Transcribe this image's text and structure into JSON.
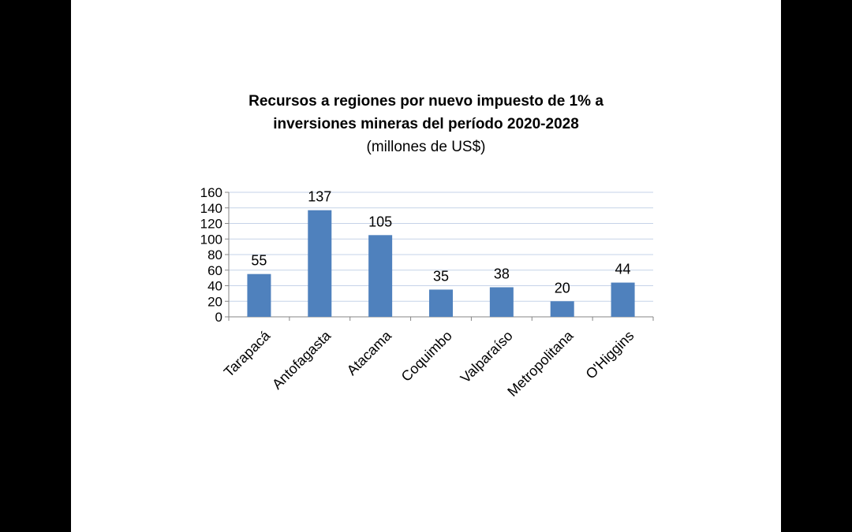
{
  "chart_data": {
    "type": "bar",
    "title_line1": "Recursos a regiones por nuevo impuesto de 1% a",
    "title_line2": "inversiones mineras del período 2020-2028",
    "subtitle": "(millones de US$)",
    "categories": [
      "Tarapacá",
      "Antofagasta",
      "Atacama",
      "Coquimbo",
      "Valparaíso",
      "Metropolitana",
      "O'Higgins"
    ],
    "values": [
      55,
      137,
      105,
      35,
      38,
      20,
      44
    ],
    "data_labels": [
      "55",
      "137",
      "105",
      "35",
      "38",
      "20",
      "44"
    ],
    "ylim": [
      0,
      160
    ],
    "yticks": [
      0,
      20,
      40,
      60,
      80,
      100,
      120,
      140,
      160
    ],
    "grid": true,
    "legend": "none",
    "bar_color": "#4F81BD",
    "grid_color": "#C6D3E8"
  }
}
